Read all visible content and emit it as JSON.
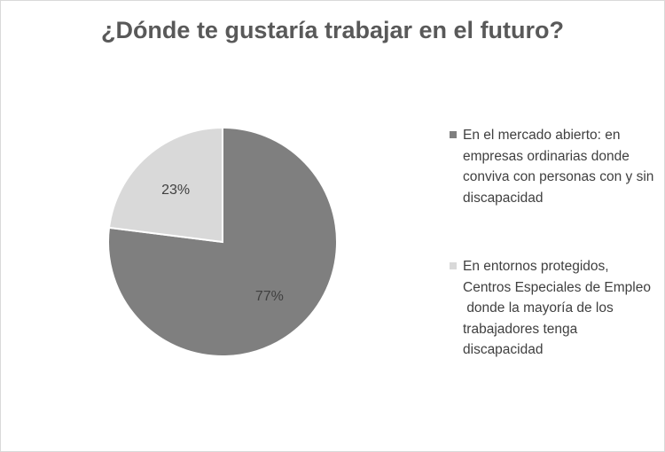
{
  "chart_data": {
    "type": "pie",
    "title": "¿Dónde te gustaría trabajar  en el futuro?",
    "slices": [
      {
        "label": "En el mercado abierto: en empresas ordinarias donde conviva con personas con y sin discapacidad",
        "value": 77,
        "data_label": "77%",
        "color": "#7f7f7f"
      },
      {
        "label": "En entornos protegidos, Centros Especiales de Empleo\n donde la mayoría de los trabajadores tenga discapacidad",
        "value": 23,
        "data_label": "23%",
        "color": "#d9d9d9"
      }
    ],
    "start_angle": "12 o'clock",
    "direction": "clockwise",
    "legend_position": "right"
  }
}
